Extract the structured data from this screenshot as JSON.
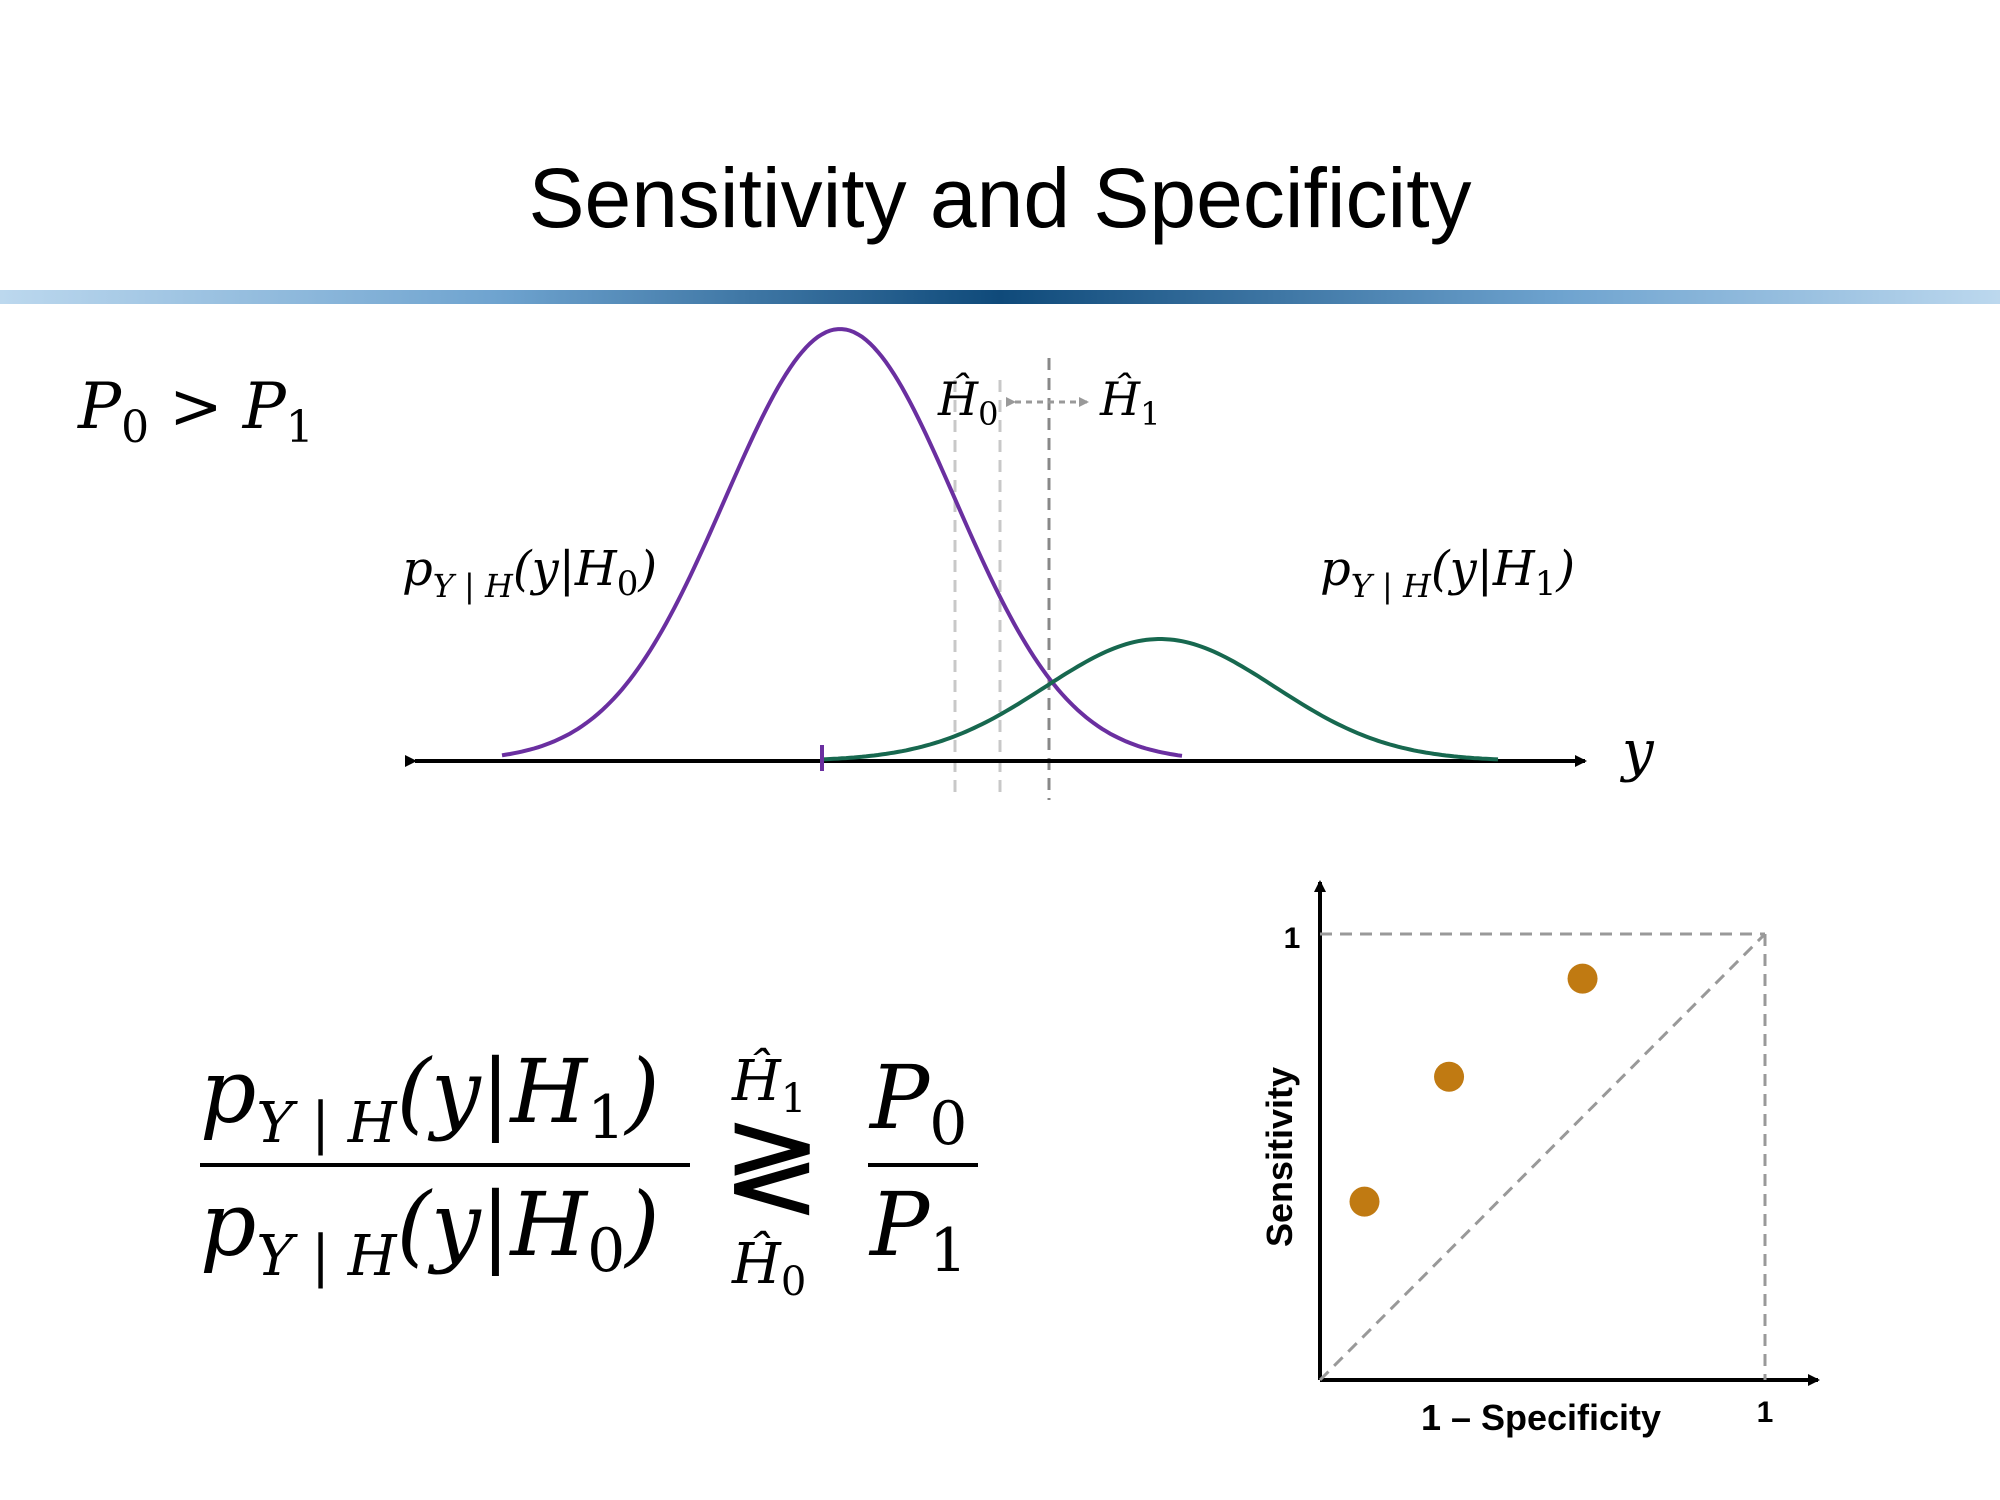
{
  "slide": {
    "title": "Sensitivity and Specificity"
  },
  "prior_condition": {
    "left": "P",
    "left_sub": "0",
    "operator": ">",
    "right": "P",
    "right_sub": "1"
  },
  "distributions": {
    "h0_label": {
      "p": "p",
      "sub": "Y | H",
      "arg": "(y|H",
      "arg_sub": "0",
      "close": ")"
    },
    "h1_label": {
      "p": "p",
      "sub": "Y | H",
      "arg": "(y|H",
      "arg_sub": "1",
      "close": ")"
    },
    "axis_label": "y",
    "decision_left": {
      "name": "Ĥ",
      "sub": "0"
    },
    "decision_right": {
      "name": "Ĥ",
      "sub": "1"
    },
    "colors": {
      "h0": "#6a2fa0",
      "h1": "#17684f",
      "threshold": "#999999"
    }
  },
  "likelihood_ratio_test": {
    "numerator": {
      "p": "p",
      "sub": "Y | H",
      "arg": "(y|H",
      "arg_sub": "1",
      "close": ")"
    },
    "denominator": {
      "p": "p",
      "sub": "Y | H",
      "arg": "(y|H",
      "arg_sub": "0",
      "close": ")"
    },
    "relation": "≷",
    "top_hyp": {
      "name": "Ĥ",
      "sub": "1"
    },
    "bottom_hyp": {
      "name": "Ĥ",
      "sub": "0"
    },
    "rhs_numerator": {
      "name": "P",
      "sub": "0"
    },
    "rhs_denominator": {
      "name": "P",
      "sub": "1"
    }
  },
  "chart_data": {
    "type": "scatter",
    "title": "",
    "xlabel": "1 – Specificity",
    "ylabel": "Sensitivity",
    "xlim": [
      0,
      1
    ],
    "ylim": [
      0,
      1
    ],
    "x_tick_labels": [
      "1"
    ],
    "y_tick_labels": [
      "1"
    ],
    "diagonal": true,
    "point_color": "#c07a12",
    "points": [
      {
        "x": 0.1,
        "y": 0.4
      },
      {
        "x": 0.29,
        "y": 0.68
      },
      {
        "x": 0.59,
        "y": 0.9
      }
    ]
  }
}
